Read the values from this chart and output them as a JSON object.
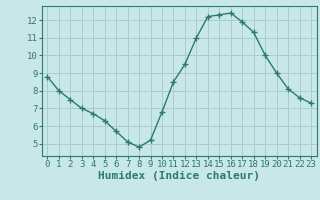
{
  "x": [
    0,
    1,
    2,
    3,
    4,
    5,
    6,
    7,
    8,
    9,
    10,
    11,
    12,
    13,
    14,
    15,
    16,
    17,
    18,
    19,
    20,
    21,
    22,
    23
  ],
  "y": [
    8.8,
    8.0,
    7.5,
    7.0,
    6.7,
    6.3,
    5.7,
    5.1,
    4.8,
    5.2,
    6.8,
    8.5,
    9.5,
    11.0,
    12.2,
    12.3,
    12.4,
    11.9,
    11.3,
    10.0,
    9.0,
    8.1,
    7.6,
    7.3
  ],
  "xlim": [
    -0.5,
    23.5
  ],
  "ylim": [
    4.3,
    12.8
  ],
  "yticks": [
    5,
    6,
    7,
    8,
    9,
    10,
    11,
    12
  ],
  "xticks": [
    0,
    1,
    2,
    3,
    4,
    5,
    6,
    7,
    8,
    9,
    10,
    11,
    12,
    13,
    14,
    15,
    16,
    17,
    18,
    19,
    20,
    21,
    22,
    23
  ],
  "xlabel": "Humidex (Indice chaleur)",
  "line_color": "#2d7a6a",
  "marker": "+",
  "bg_color": "#c8e8e8",
  "grid_color": "#aacccc",
  "tick_color": "#2d7a6a",
  "label_fontsize": 8,
  "tick_fontsize": 6.5
}
